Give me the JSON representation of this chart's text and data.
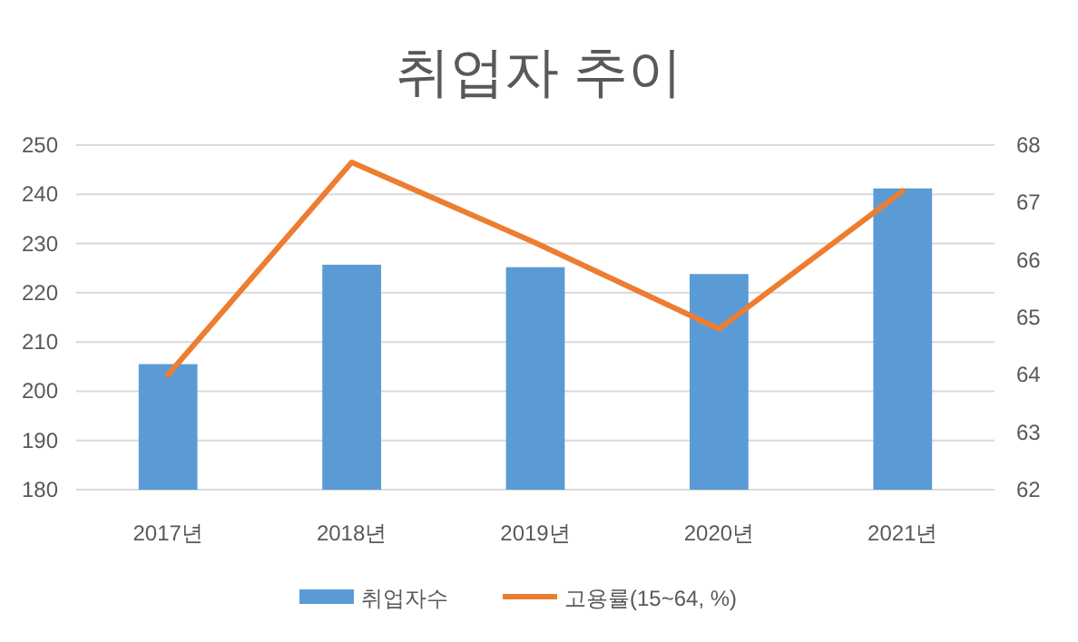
{
  "chart_data": {
    "type": "bar",
    "title": "취업자 추이",
    "categories": [
      "2017년",
      "2018년",
      "2019년",
      "2020년",
      "2021년"
    ],
    "series": [
      {
        "name": "취업자수",
        "color": "#5b9bd5",
        "values": [
          205.5,
          225.7,
          225.2,
          223.8,
          241.2
        ]
      },
      {
        "name": "고용률(15~64, %)",
        "type": "line",
        "axis": "y2",
        "color": "#ed7d31",
        "values": [
          64.0,
          67.7,
          66.3,
          64.8,
          67.2
        ]
      }
    ],
    "ylim": [
      180,
      250
    ],
    "yticks": [
      180,
      190,
      200,
      210,
      220,
      230,
      240,
      250
    ],
    "y2lim": [
      62,
      68
    ],
    "y2ticks": [
      62,
      63,
      64,
      65,
      66,
      67,
      68
    ],
    "grid": "y",
    "legend": "bottom",
    "marker": "none",
    "line_style": "solid"
  }
}
